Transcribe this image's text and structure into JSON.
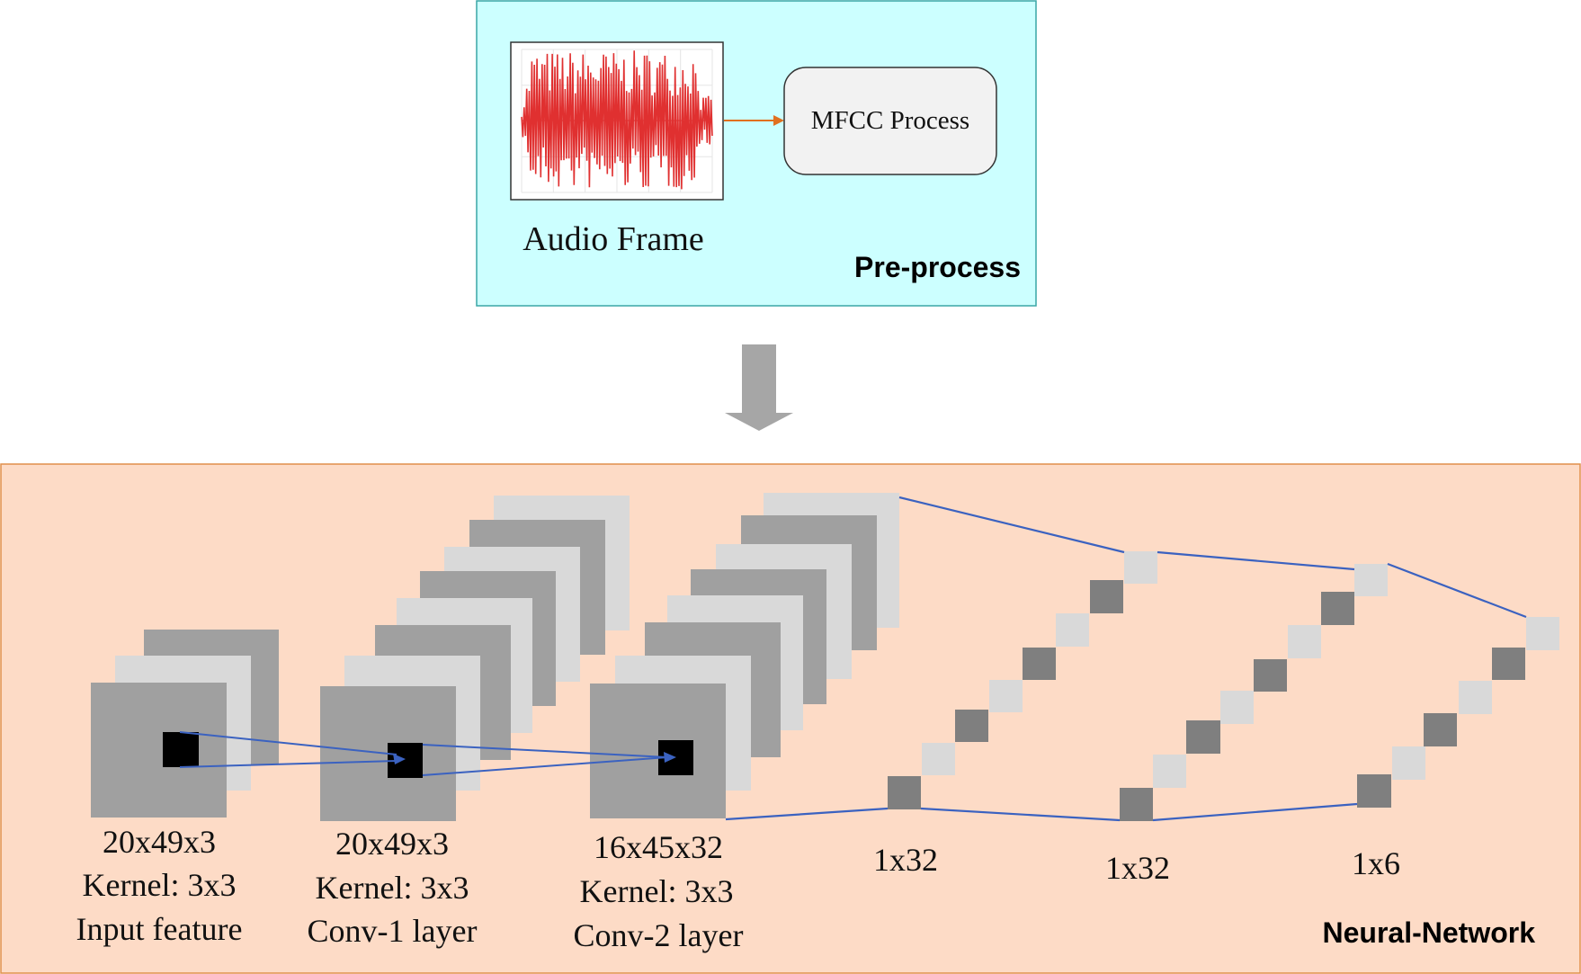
{
  "preprocess": {
    "panel_label": "Pre-process",
    "audio_label": "Audio Frame",
    "mfcc_label": "MFCC Process",
    "fill": "#ccffff",
    "border": "#3aa6a6",
    "waveform_color": "#e03030",
    "arrow_color": "#e07020"
  },
  "network": {
    "panel_label": "Neural-Network",
    "fill": "#fddbc6",
    "border": "#e0904c",
    "connector_color": "#3b62c0",
    "layers": [
      {
        "dims": "20x49x3",
        "kernel": "Kernel: 3x3",
        "name": "Input feature"
      },
      {
        "dims": "20x49x3",
        "kernel": "Kernel: 3x3",
        "name": "Conv-1 layer"
      },
      {
        "dims": "16x45x32",
        "kernel": "Kernel: 3x3",
        "name": "Conv-2 layer"
      }
    ],
    "vectors": [
      {
        "dims": "1x32"
      },
      {
        "dims": "1x32"
      },
      {
        "dims": "1x6"
      }
    ]
  },
  "colors": {
    "block_dark": "#a0a0a0",
    "block_light": "#d9d9d9",
    "cell_dark": "#7f7f7f",
    "cell_light": "#d9d9d9",
    "flow_arrow": "#a6a6a6"
  }
}
